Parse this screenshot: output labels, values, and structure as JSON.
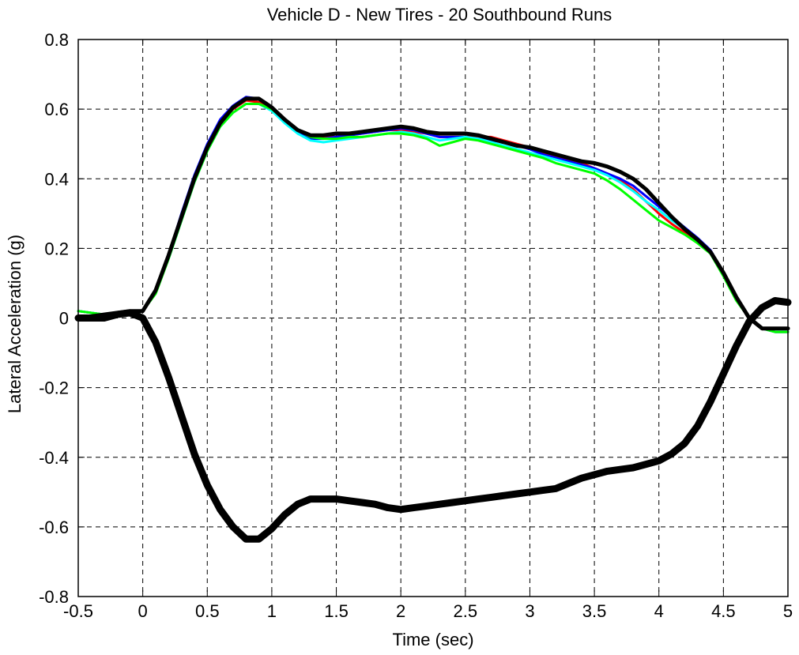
{
  "chart_data": {
    "type": "line",
    "title": "Vehicle D - New Tires - 20 Southbound Runs",
    "xlabel": "Time (sec)",
    "ylabel": "Lateral Acceleration (g)",
    "xlim": [
      -0.5,
      5
    ],
    "ylim": [
      -0.8,
      0.8
    ],
    "xticks": [
      -0.5,
      0,
      0.5,
      1,
      1.5,
      2,
      2.5,
      3,
      3.5,
      4,
      4.5,
      5
    ],
    "xtick_labels": [
      "-0.5",
      "0",
      "0.5",
      "1",
      "1.5",
      "2",
      "2.5",
      "3",
      "3.5",
      "4",
      "4.5",
      "5"
    ],
    "yticks": [
      -0.8,
      -0.6,
      -0.4,
      -0.2,
      0,
      0.2,
      0.4,
      0.6,
      0.8
    ],
    "ytick_labels": [
      "-0.8",
      "-0.6",
      "-0.4",
      "-0.2",
      "0",
      "0.2",
      "0.4",
      "0.6",
      "0.8"
    ],
    "grid": true,
    "grid_style": "dashed",
    "colors": {
      "red": "#ff0000",
      "blue": "#0000ff",
      "cyan": "#00ffff",
      "green": "#00ff00",
      "black": "#000000"
    },
    "series": [
      {
        "color": "#ff0000",
        "width": 3,
        "x": [
          -0.5,
          -0.3,
          -0.1,
          0,
          0.1,
          0.2,
          0.3,
          0.4,
          0.5,
          0.6,
          0.7,
          0.8,
          0.9,
          1.0,
          1.1,
          1.2,
          1.3,
          1.4,
          1.5,
          1.6,
          1.7,
          1.8,
          1.9,
          2.0,
          2.1,
          2.2,
          2.3,
          2.4,
          2.5,
          2.6,
          2.7,
          2.8,
          2.9,
          3.0,
          3.1,
          3.2,
          3.3,
          3.4,
          3.5,
          3.6,
          3.7,
          3.8,
          3.9,
          4.0,
          4.1,
          4.2,
          4.3,
          4.4,
          4.5,
          4.6,
          4.7,
          4.8,
          4.9,
          5.0
        ],
        "y": [
          0.02,
          0.01,
          0.01,
          0.02,
          0.08,
          0.18,
          0.29,
          0.4,
          0.49,
          0.56,
          0.6,
          0.625,
          0.62,
          0.6,
          0.565,
          0.535,
          0.52,
          0.52,
          0.52,
          0.525,
          0.53,
          0.535,
          0.54,
          0.54,
          0.535,
          0.53,
          0.52,
          0.52,
          0.52,
          0.52,
          0.52,
          0.51,
          0.5,
          0.49,
          0.475,
          0.465,
          0.455,
          0.445,
          0.43,
          0.415,
          0.395,
          0.37,
          0.335,
          0.3,
          0.27,
          0.245,
          0.22,
          0.19,
          0.13,
          0.06,
          0.0,
          -0.03,
          -0.04,
          -0.04
        ]
      },
      {
        "color": "#0000ff",
        "width": 3,
        "x": [
          -0.5,
          -0.3,
          -0.1,
          0,
          0.1,
          0.2,
          0.3,
          0.4,
          0.5,
          0.6,
          0.7,
          0.8,
          0.9,
          1.0,
          1.1,
          1.2,
          1.3,
          1.4,
          1.5,
          1.6,
          1.7,
          1.8,
          1.9,
          2.0,
          2.1,
          2.2,
          2.3,
          2.4,
          2.5,
          2.6,
          2.7,
          2.8,
          2.9,
          3.0,
          3.1,
          3.2,
          3.3,
          3.4,
          3.5,
          3.6,
          3.7,
          3.8,
          3.9,
          4.0,
          4.1,
          4.2,
          4.3,
          4.4,
          4.5,
          4.6,
          4.7,
          4.8,
          4.9,
          5.0
        ],
        "y": [
          0.02,
          0.01,
          0.01,
          0.02,
          0.08,
          0.18,
          0.3,
          0.41,
          0.5,
          0.57,
          0.61,
          0.635,
          0.63,
          0.605,
          0.57,
          0.535,
          0.515,
          0.515,
          0.52,
          0.525,
          0.53,
          0.535,
          0.54,
          0.545,
          0.54,
          0.53,
          0.52,
          0.52,
          0.52,
          0.515,
          0.51,
          0.505,
          0.495,
          0.485,
          0.47,
          0.46,
          0.45,
          0.44,
          0.43,
          0.415,
          0.4,
          0.38,
          0.35,
          0.32,
          0.29,
          0.26,
          0.23,
          0.195,
          0.13,
          0.06,
          0.0,
          -0.03,
          -0.04,
          -0.04
        ]
      },
      {
        "color": "#00ffff",
        "width": 3,
        "x": [
          -0.5,
          -0.3,
          -0.1,
          0,
          0.1,
          0.2,
          0.3,
          0.4,
          0.5,
          0.6,
          0.7,
          0.8,
          0.9,
          1.0,
          1.1,
          1.2,
          1.3,
          1.4,
          1.5,
          1.6,
          1.7,
          1.8,
          1.9,
          2.0,
          2.1,
          2.2,
          2.3,
          2.4,
          2.5,
          2.6,
          2.7,
          2.8,
          2.9,
          3.0,
          3.1,
          3.2,
          3.3,
          3.4,
          3.5,
          3.6,
          3.7,
          3.8,
          3.9,
          4.0,
          4.1,
          4.2,
          4.3,
          4.4,
          4.5,
          4.6,
          4.7,
          4.8,
          4.9,
          5.0
        ],
        "y": [
          0.02,
          0.01,
          0.01,
          0.02,
          0.08,
          0.17,
          0.28,
          0.39,
          0.48,
          0.55,
          0.59,
          0.615,
          0.615,
          0.595,
          0.56,
          0.53,
          0.51,
          0.505,
          0.51,
          0.515,
          0.52,
          0.525,
          0.53,
          0.535,
          0.53,
          0.52,
          0.51,
          0.515,
          0.52,
          0.515,
          0.505,
          0.495,
          0.485,
          0.475,
          0.465,
          0.455,
          0.445,
          0.435,
          0.425,
          0.41,
          0.39,
          0.365,
          0.335,
          0.31,
          0.28,
          0.255,
          0.225,
          0.19,
          0.13,
          0.06,
          0.0,
          -0.03,
          -0.04,
          -0.04
        ]
      },
      {
        "color": "#00ff00",
        "width": 3,
        "x": [
          -0.5,
          -0.3,
          -0.1,
          0,
          0.1,
          0.2,
          0.3,
          0.4,
          0.5,
          0.6,
          0.7,
          0.8,
          0.9,
          1.0,
          1.1,
          1.2,
          1.3,
          1.4,
          1.5,
          1.6,
          1.7,
          1.8,
          1.9,
          2.0,
          2.1,
          2.2,
          2.3,
          2.4,
          2.5,
          2.6,
          2.7,
          2.8,
          2.9,
          3.0,
          3.1,
          3.2,
          3.3,
          3.4,
          3.5,
          3.6,
          3.7,
          3.8,
          3.9,
          4.0,
          4.1,
          4.2,
          4.3,
          4.4,
          4.5,
          4.6,
          4.7,
          4.8,
          4.9,
          5.0
        ],
        "y": [
          0.02,
          0.01,
          0.01,
          0.02,
          0.07,
          0.17,
          0.28,
          0.39,
          0.48,
          0.55,
          0.59,
          0.615,
          0.615,
          0.6,
          0.57,
          0.54,
          0.52,
          0.515,
          0.515,
          0.52,
          0.52,
          0.525,
          0.53,
          0.53,
          0.525,
          0.515,
          0.495,
          0.505,
          0.515,
          0.51,
          0.5,
          0.49,
          0.48,
          0.47,
          0.46,
          0.445,
          0.435,
          0.425,
          0.415,
          0.395,
          0.37,
          0.34,
          0.31,
          0.28,
          0.26,
          0.24,
          0.215,
          0.185,
          0.12,
          0.05,
          0.0,
          -0.03,
          -0.04,
          -0.04
        ]
      },
      {
        "color": "#000000",
        "width": 5,
        "x": [
          -0.5,
          -0.3,
          -0.1,
          0,
          0.1,
          0.2,
          0.3,
          0.4,
          0.5,
          0.6,
          0.7,
          0.8,
          0.9,
          1.0,
          1.1,
          1.2,
          1.3,
          1.4,
          1.5,
          1.6,
          1.7,
          1.8,
          1.9,
          2.0,
          2.1,
          2.2,
          2.3,
          2.4,
          2.5,
          2.6,
          2.7,
          2.8,
          2.9,
          3.0,
          3.1,
          3.2,
          3.3,
          3.4,
          3.5,
          3.6,
          3.7,
          3.8,
          3.9,
          4.0,
          4.1,
          4.2,
          4.3,
          4.4,
          4.5,
          4.6,
          4.7,
          4.8,
          4.9,
          5.0
        ],
        "y": [
          0.0,
          0.01,
          0.02,
          0.02,
          0.08,
          0.18,
          0.29,
          0.4,
          0.49,
          0.56,
          0.605,
          0.63,
          0.63,
          0.605,
          0.57,
          0.54,
          0.525,
          0.525,
          0.53,
          0.53,
          0.535,
          0.54,
          0.545,
          0.55,
          0.545,
          0.535,
          0.53,
          0.53,
          0.53,
          0.525,
          0.515,
          0.505,
          0.495,
          0.49,
          0.48,
          0.47,
          0.46,
          0.45,
          0.445,
          0.435,
          0.42,
          0.4,
          0.37,
          0.33,
          0.29,
          0.255,
          0.225,
          0.19,
          0.13,
          0.06,
          0.0,
          -0.03,
          -0.03,
          -0.03
        ]
      },
      {
        "color": "#000000",
        "width": 9,
        "x": [
          -0.5,
          -0.4,
          -0.3,
          -0.2,
          -0.1,
          0,
          0.1,
          0.2,
          0.3,
          0.4,
          0.5,
          0.6,
          0.7,
          0.8,
          0.9,
          1.0,
          1.1,
          1.2,
          1.3,
          1.4,
          1.5,
          1.6,
          1.7,
          1.8,
          1.9,
          2.0,
          2.1,
          2.2,
          2.3,
          2.4,
          2.5,
          2.6,
          2.7,
          2.8,
          2.9,
          3.0,
          3.1,
          3.2,
          3.3,
          3.4,
          3.5,
          3.6,
          3.7,
          3.8,
          3.9,
          4.0,
          4.1,
          4.2,
          4.3,
          4.4,
          4.5,
          4.6,
          4.7,
          4.8,
          4.9,
          5.0
        ],
        "y": [
          0.0,
          0.0,
          0.0,
          0.01,
          0.015,
          0.0,
          -0.07,
          -0.17,
          -0.28,
          -0.39,
          -0.48,
          -0.55,
          -0.6,
          -0.635,
          -0.635,
          -0.605,
          -0.565,
          -0.535,
          -0.52,
          -0.52,
          -0.52,
          -0.525,
          -0.53,
          -0.535,
          -0.545,
          -0.55,
          -0.545,
          -0.54,
          -0.535,
          -0.53,
          -0.525,
          -0.52,
          -0.515,
          -0.51,
          -0.505,
          -0.5,
          -0.495,
          -0.49,
          -0.475,
          -0.46,
          -0.45,
          -0.44,
          -0.435,
          -0.43,
          -0.42,
          -0.41,
          -0.39,
          -0.36,
          -0.31,
          -0.24,
          -0.16,
          -0.08,
          -0.01,
          0.03,
          0.05,
          0.045
        ]
      }
    ]
  }
}
